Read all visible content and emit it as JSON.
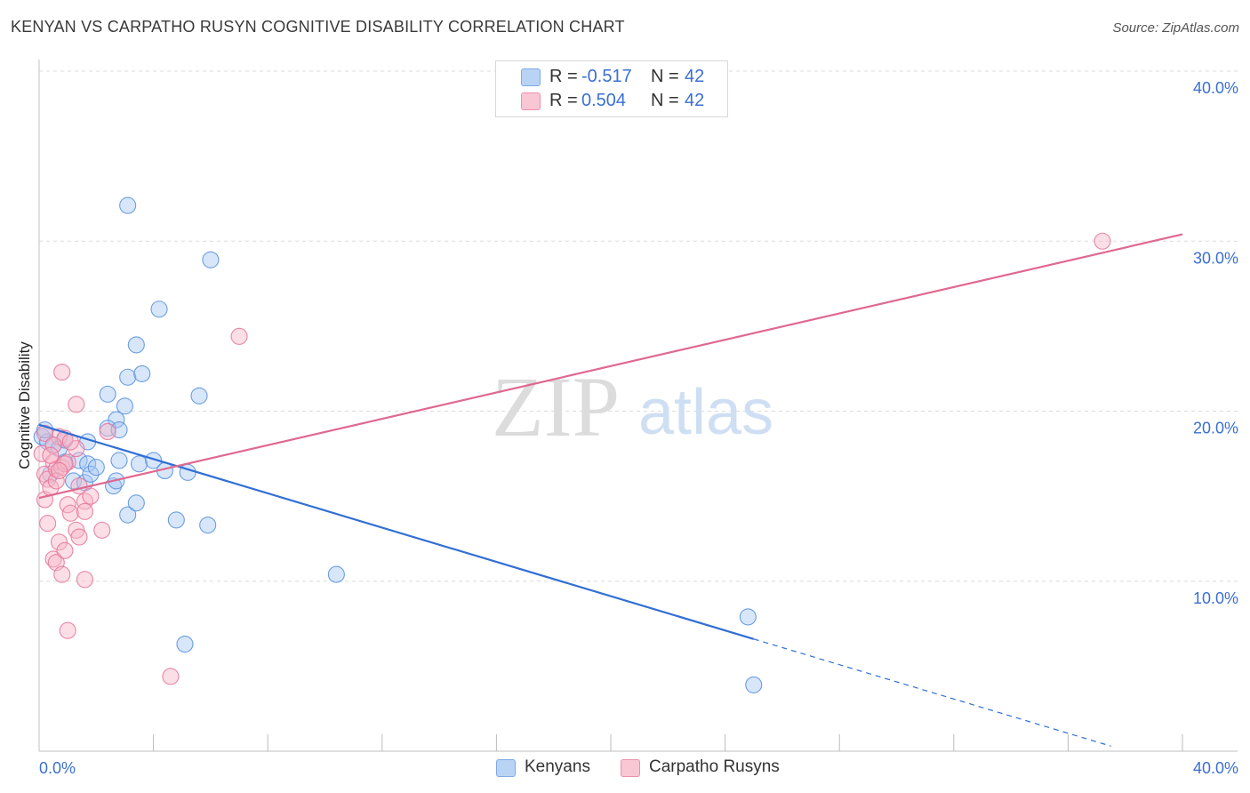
{
  "header": {
    "title": "KENYAN VS CARPATHO RUSYN COGNITIVE DISABILITY CORRELATION CHART",
    "source": "Source: ZipAtlas.com"
  },
  "watermark": {
    "zip": "ZIP",
    "atlas": "atlas"
  },
  "stats": [
    {
      "r_label": "R =",
      "r_value": "-0.517",
      "n_label": "N =",
      "n_value": "42",
      "color": "#a9c8f3"
    },
    {
      "r_label": "R =",
      "r_value": "0.504",
      "n_label": "N =",
      "n_value": "42",
      "color": "#f7b6c8"
    }
  ],
  "legend": [
    {
      "label": "Kenyans",
      "color": "#a9c8f3"
    },
    {
      "label": "Carpatho Rusyns",
      "color": "#f7b6c8"
    }
  ],
  "chart_data": {
    "type": "scatter",
    "title": "KENYAN VS CARPATHO RUSYN COGNITIVE DISABILITY CORRELATION CHART",
    "xlabel": "",
    "ylabel": "Cognitive Disability",
    "xlim": [
      0,
      40
    ],
    "ylim": [
      0,
      40
    ],
    "x_tick_labels": [
      "0.0%",
      "40.0%"
    ],
    "y_ticks": [
      {
        "value": 10,
        "label": "10.0%"
      },
      {
        "value": 20,
        "label": "20.0%"
      },
      {
        "value": 30,
        "label": "30.0%"
      },
      {
        "value": 40,
        "label": "40.0%"
      }
    ],
    "grid": true,
    "series": [
      {
        "name": "Kenyans",
        "color": "#5b93e0",
        "fill": "#a9c8f3",
        "line_color": "#2f6fd6",
        "trend": {
          "x0": 0,
          "y0": 19.2,
          "x1": 25.0,
          "y1": 6.6,
          "dash_x_end": 37.5
        },
        "points": [
          [
            0.1,
            18.5
          ],
          [
            0.3,
            18.2
          ],
          [
            0.5,
            18.0
          ],
          [
            0.7,
            17.8
          ],
          [
            0.9,
            18.3
          ],
          [
            0.4,
            16.3
          ],
          [
            0.9,
            17.0
          ],
          [
            1.2,
            15.9
          ],
          [
            1.4,
            17.1
          ],
          [
            1.6,
            15.8
          ],
          [
            1.7,
            16.9
          ],
          [
            1.7,
            18.2
          ],
          [
            1.8,
            16.3
          ],
          [
            2.0,
            16.7
          ],
          [
            2.7,
            19.5
          ],
          [
            2.4,
            19.0
          ],
          [
            2.8,
            18.9
          ],
          [
            3.0,
            20.3
          ],
          [
            2.4,
            21.0
          ],
          [
            2.8,
            17.1
          ],
          [
            2.6,
            15.6
          ],
          [
            2.7,
            15.9
          ],
          [
            3.1,
            13.9
          ],
          [
            3.4,
            14.6
          ],
          [
            3.5,
            16.9
          ],
          [
            3.4,
            23.9
          ],
          [
            3.1,
            22.0
          ],
          [
            3.6,
            22.2
          ],
          [
            4.2,
            26.0
          ],
          [
            4.0,
            17.1
          ],
          [
            4.4,
            16.5
          ],
          [
            4.8,
            13.6
          ],
          [
            5.2,
            16.4
          ],
          [
            5.6,
            20.9
          ],
          [
            5.9,
            13.3
          ],
          [
            6.0,
            28.9
          ],
          [
            3.1,
            32.1
          ],
          [
            5.1,
            6.3
          ],
          [
            10.4,
            10.4
          ],
          [
            24.8,
            7.9
          ],
          [
            25.0,
            3.9
          ],
          [
            0.2,
            18.9
          ]
        ]
      },
      {
        "name": "Carpatho Rusyns",
        "color": "#e8799b",
        "fill": "#f7b6c8",
        "line_color": "#e0688f",
        "trend": {
          "x0": 0,
          "y0": 14.9,
          "x1": 40,
          "y1": 30.4
        },
        "points": [
          [
            0.1,
            17.5
          ],
          [
            0.2,
            16.3
          ],
          [
            0.3,
            16.0
          ],
          [
            0.2,
            14.8
          ],
          [
            0.3,
            13.4
          ],
          [
            0.5,
            17.0
          ],
          [
            0.6,
            16.6
          ],
          [
            0.7,
            18.5
          ],
          [
            0.8,
            16.7
          ],
          [
            0.9,
            18.4
          ],
          [
            0.8,
            22.3
          ],
          [
            0.5,
            11.3
          ],
          [
            0.6,
            11.1
          ],
          [
            0.7,
            12.3
          ],
          [
            0.8,
            10.4
          ],
          [
            0.9,
            11.8
          ],
          [
            1.0,
            14.5
          ],
          [
            1.0,
            17.0
          ],
          [
            1.0,
            7.1
          ],
          [
            1.1,
            14.0
          ],
          [
            1.3,
            17.8
          ],
          [
            1.3,
            20.4
          ],
          [
            1.3,
            13.0
          ],
          [
            1.4,
            12.6
          ],
          [
            1.4,
            15.6
          ],
          [
            1.6,
            14.7
          ],
          [
            1.6,
            14.1
          ],
          [
            1.6,
            10.1
          ],
          [
            1.8,
            15.0
          ],
          [
            2.2,
            13.0
          ],
          [
            2.4,
            18.8
          ],
          [
            4.6,
            4.4
          ],
          [
            7.0,
            24.4
          ],
          [
            37.2,
            30.0
          ],
          [
            0.4,
            15.5
          ],
          [
            0.2,
            18.7
          ],
          [
            0.5,
            18.0
          ],
          [
            0.6,
            15.9
          ],
          [
            0.9,
            16.9
          ],
          [
            0.4,
            17.4
          ],
          [
            0.7,
            16.5
          ],
          [
            1.1,
            18.2
          ]
        ]
      }
    ]
  }
}
